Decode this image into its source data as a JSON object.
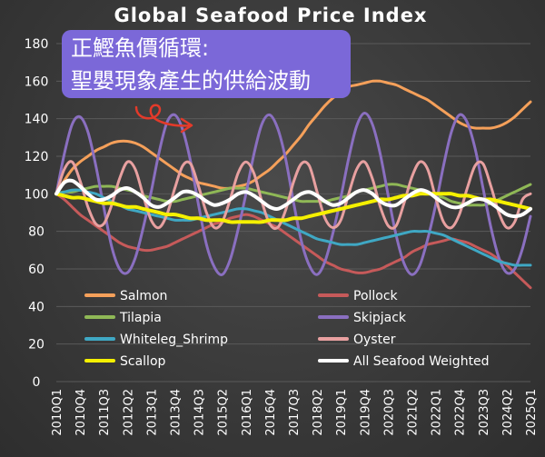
{
  "annotation": {
    "line1": "正鰹魚價循環:",
    "line2": "聖嬰現象產生的供給波動"
  },
  "chart_data": {
    "type": "line",
    "title": "Global Seafood Price Index",
    "xlabel": "",
    "ylabel": "",
    "ylim": [
      0,
      180
    ],
    "yticks": [
      0,
      20,
      40,
      60,
      80,
      100,
      120,
      140,
      160,
      180
    ],
    "grid": true,
    "legend_position": "bottom",
    "x": [
      "2010Q1",
      "2010Q2",
      "2010Q3",
      "2010Q4",
      "2011Q1",
      "2011Q2",
      "2011Q3",
      "2011Q4",
      "2012Q1",
      "2012Q2",
      "2012Q3",
      "2012Q4",
      "2013Q1",
      "2013Q2",
      "2013Q3",
      "2013Q4",
      "2014Q1",
      "2014Q2",
      "2014Q3",
      "2014Q4",
      "2015Q1",
      "2015Q2",
      "2015Q3",
      "2015Q4",
      "2016Q1",
      "2016Q2",
      "2016Q3",
      "2016Q4",
      "2017Q1",
      "2017Q2",
      "2017Q3",
      "2017Q4",
      "2018Q1",
      "2018Q2",
      "2018Q3",
      "2018Q4",
      "2019Q1",
      "2019Q2",
      "2019Q3",
      "2019Q4",
      "2020Q1",
      "2020Q2",
      "2020Q3",
      "2020Q4",
      "2021Q1",
      "2021Q2",
      "2021Q3",
      "2021Q4",
      "2022Q1",
      "2022Q2",
      "2022Q3",
      "2022Q4",
      "2023Q1",
      "2023Q2",
      "2023Q3",
      "2023Q4",
      "2024Q1",
      "2024Q2",
      "2024Q3",
      "2024Q4",
      "2025Q1"
    ],
    "x_tick_labels": [
      "2010Q1",
      "2010Q4",
      "2011Q3",
      "2012Q2",
      "2013Q1",
      "2013Q4",
      "2014Q3",
      "2015Q2",
      "2016Q1",
      "2016Q4",
      "2017Q3",
      "2018Q2",
      "2019Q1",
      "2019Q4",
      "2020Q3",
      "2021Q2",
      "2022Q1",
      "2022Q4",
      "2023Q3",
      "2024Q2",
      "2025Q1"
    ],
    "series": [
      {
        "name": "Salmon",
        "color": "#f5a05a",
        "width": 3,
        "values": [
          100,
          107,
          113,
          117,
          120,
          123,
          125,
          127,
          128,
          128,
          127,
          125,
          122,
          119,
          116,
          113,
          110,
          108,
          106,
          105,
          104,
          103,
          103,
          104,
          105,
          107,
          110,
          113,
          117,
          121,
          126,
          131,
          137,
          142,
          147,
          151,
          154,
          157,
          158,
          159,
          160,
          160,
          159,
          158,
          156,
          154,
          152,
          150,
          147,
          144,
          141,
          138,
          136,
          135,
          135,
          135,
          136,
          138,
          141,
          145,
          149
        ]
      },
      {
        "name": "Pollock",
        "color": "#c65a5a",
        "width": 3,
        "values": [
          100,
          97,
          93,
          89,
          86,
          83,
          80,
          77,
          74,
          72,
          71,
          70,
          70,
          71,
          72,
          74,
          76,
          78,
          80,
          82,
          84,
          85,
          87,
          88,
          89,
          88,
          86,
          84,
          82,
          79,
          76,
          73,
          70,
          67,
          64,
          62,
          60,
          59,
          58,
          58,
          59,
          60,
          62,
          64,
          66,
          69,
          71,
          73,
          74,
          75,
          76,
          75,
          74,
          72,
          70,
          68,
          65,
          62,
          58,
          54,
          50
        ]
      },
      {
        "name": "Tilapia",
        "color": "#8fb856",
        "width": 3,
        "values": [
          100,
          101,
          101,
          102,
          103,
          104,
          104,
          104,
          103,
          102,
          101,
          99,
          98,
          97,
          96,
          96,
          97,
          98,
          99,
          100,
          101,
          102,
          103,
          103,
          103,
          102,
          101,
          100,
          99,
          98,
          97,
          96,
          96,
          96,
          96,
          97,
          98,
          99,
          101,
          102,
          103,
          104,
          105,
          105,
          104,
          103,
          102,
          101,
          99,
          98,
          96,
          95,
          94,
          94,
          94,
          95,
          97,
          99,
          101,
          103,
          105
        ]
      },
      {
        "name": "Skipjack",
        "color": "#8a6fc0",
        "width": 3,
        "values": [
          100,
          121,
          137,
          141,
          133,
          115,
          93,
          72,
          60,
          58,
          66,
          82,
          101,
          122,
          138,
          142,
          134,
          117,
          94,
          73,
          61,
          57,
          65,
          81,
          100,
          121,
          137,
          142,
          135,
          119,
          96,
          75,
          62,
          57,
          64,
          79,
          98,
          119,
          136,
          143,
          137,
          121,
          99,
          78,
          63,
          57,
          62,
          76,
          94,
          115,
          133,
          142,
          138,
          124,
          103,
          82,
          66,
          58,
          60,
          71,
          88
        ]
      },
      {
        "name": "Whiteleg_Shrimp",
        "color": "#3fa8c4",
        "width": 3,
        "values": [
          100,
          101,
          102,
          102,
          101,
          100,
          98,
          96,
          94,
          92,
          91,
          90,
          89,
          88,
          87,
          86,
          86,
          86,
          87,
          88,
          89,
          90,
          91,
          92,
          92,
          91,
          90,
          88,
          86,
          84,
          82,
          80,
          78,
          76,
          75,
          74,
          73,
          73,
          73,
          74,
          75,
          76,
          77,
          78,
          79,
          80,
          80,
          80,
          79,
          78,
          76,
          74,
          72,
          70,
          68,
          66,
          64,
          63,
          62,
          62,
          62
        ]
      },
      {
        "name": "Oyster",
        "color": "#e8a0a0",
        "width": 3,
        "values": [
          100,
          113,
          117,
          107,
          93,
          84,
          84,
          94,
          108,
          117,
          113,
          99,
          86,
          82,
          89,
          103,
          115,
          116,
          104,
          90,
          82,
          85,
          97,
          111,
          117,
          111,
          96,
          84,
          82,
          91,
          106,
          116,
          115,
          101,
          87,
          82,
          86,
          100,
          113,
          117,
          108,
          93,
          83,
          83,
          95,
          109,
          117,
          113,
          98,
          85,
          82,
          89,
          103,
          115,
          116,
          104,
          90,
          82,
          85,
          97,
          100
        ]
      },
      {
        "name": "Scallop",
        "color": "#f5f000",
        "width": 4,
        "values": [
          100,
          99,
          98,
          98,
          97,
          96,
          95,
          95,
          94,
          93,
          93,
          92,
          91,
          90,
          89,
          89,
          88,
          87,
          87,
          86,
          86,
          86,
          85,
          85,
          85,
          85,
          85,
          86,
          86,
          86,
          87,
          87,
          88,
          89,
          90,
          91,
          92,
          93,
          94,
          95,
          96,
          97,
          97,
          98,
          99,
          99,
          100,
          100,
          100,
          100,
          100,
          99,
          99,
          98,
          97,
          97,
          96,
          95,
          94,
          93,
          92
        ]
      },
      {
        "name": "All Seafood Weighted",
        "color": "#ffffff",
        "width": 4,
        "values": [
          100,
          106,
          107,
          104,
          100,
          97,
          97,
          99,
          102,
          103,
          101,
          98,
          94,
          93,
          95,
          98,
          101,
          101,
          99,
          96,
          94,
          95,
          97,
          100,
          101,
          99,
          96,
          93,
          92,
          94,
          97,
          100,
          101,
          99,
          96,
          94,
          95,
          98,
          101,
          102,
          100,
          96,
          94,
          94,
          97,
          100,
          102,
          101,
          98,
          95,
          93,
          93,
          95,
          97,
          97,
          95,
          92,
          89,
          88,
          89,
          92
        ]
      }
    ]
  }
}
